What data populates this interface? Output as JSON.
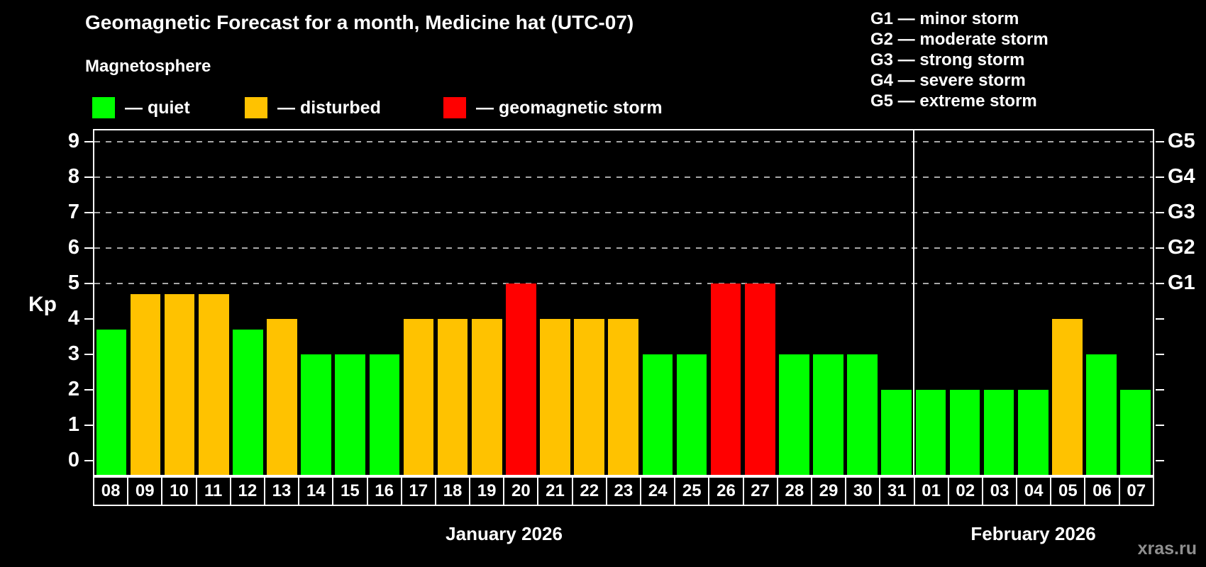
{
  "title": "Geomagnetic Forecast for a month, Medicine hat (UTC-07)",
  "subtitle": "Magnetosphere",
  "legend": {
    "items": [
      {
        "label": "— quiet",
        "status": "quiet",
        "color": "#00FF00"
      },
      {
        "label": "— disturbed",
        "status": "disturbed",
        "color": "#FFC200"
      },
      {
        "label": "— geomagnetic storm",
        "status": "storm",
        "color": "#FF0000"
      }
    ]
  },
  "g_scale_legend": {
    "lines": [
      "G1 — minor storm",
      "G2 — moderate storm",
      "G3 — strong storm",
      "G4 — severe storm",
      "G5 — extreme storm"
    ]
  },
  "watermark": "xras.ru",
  "chart_data": {
    "type": "bar",
    "title": "Geomagnetic Forecast for a month, Medicine hat (UTC-07)",
    "ylabel": "Kp",
    "ylim": [
      0,
      9
    ],
    "yticks": [
      0,
      1,
      2,
      3,
      4,
      5,
      6,
      7,
      8,
      9
    ],
    "grid": "dashed horizontal lines at storm levels only",
    "gridlines": {
      "values": [
        5,
        6,
        7,
        8,
        9
      ],
      "right_labels": [
        "G1",
        "G2",
        "G3",
        "G4",
        "G5"
      ]
    },
    "months": [
      {
        "label": "January 2026",
        "start_index": 0,
        "days": 24
      },
      {
        "label": "February 2026",
        "start_index": 24,
        "days": 7
      }
    ],
    "bars": [
      {
        "day": "08",
        "kp": 3.7,
        "status": "quiet"
      },
      {
        "day": "09",
        "kp": 4.7,
        "status": "disturbed"
      },
      {
        "day": "10",
        "kp": 4.7,
        "status": "disturbed"
      },
      {
        "day": "11",
        "kp": 4.7,
        "status": "disturbed"
      },
      {
        "day": "12",
        "kp": 3.7,
        "status": "quiet"
      },
      {
        "day": "13",
        "kp": 4,
        "status": "disturbed"
      },
      {
        "day": "14",
        "kp": 3,
        "status": "quiet"
      },
      {
        "day": "15",
        "kp": 3,
        "status": "quiet"
      },
      {
        "day": "16",
        "kp": 3,
        "status": "quiet"
      },
      {
        "day": "17",
        "kp": 4,
        "status": "disturbed"
      },
      {
        "day": "18",
        "kp": 4,
        "status": "disturbed"
      },
      {
        "day": "19",
        "kp": 4,
        "status": "disturbed"
      },
      {
        "day": "20",
        "kp": 5,
        "status": "storm"
      },
      {
        "day": "21",
        "kp": 4,
        "status": "disturbed"
      },
      {
        "day": "22",
        "kp": 4,
        "status": "disturbed"
      },
      {
        "day": "23",
        "kp": 4,
        "status": "disturbed"
      },
      {
        "day": "24",
        "kp": 3,
        "status": "quiet"
      },
      {
        "day": "25",
        "kp": 3,
        "status": "quiet"
      },
      {
        "day": "26",
        "kp": 5,
        "status": "storm"
      },
      {
        "day": "27",
        "kp": 5,
        "status": "storm"
      },
      {
        "day": "28",
        "kp": 3,
        "status": "quiet"
      },
      {
        "day": "29",
        "kp": 3,
        "status": "quiet"
      },
      {
        "day": "30",
        "kp": 3,
        "status": "quiet"
      },
      {
        "day": "31",
        "kp": 2,
        "status": "quiet"
      },
      {
        "day": "01",
        "kp": 2,
        "status": "quiet"
      },
      {
        "day": "02",
        "kp": 2,
        "status": "quiet"
      },
      {
        "day": "03",
        "kp": 2,
        "status": "quiet"
      },
      {
        "day": "04",
        "kp": 2,
        "status": "quiet"
      },
      {
        "day": "05",
        "kp": 4,
        "status": "disturbed"
      },
      {
        "day": "06",
        "kp": 3,
        "status": "quiet"
      },
      {
        "day": "07",
        "kp": 2,
        "status": "quiet"
      }
    ]
  },
  "colors": {
    "quiet": "#00FF00",
    "disturbed": "#FFC200",
    "storm": "#FF0000",
    "background": "#000000",
    "axis": "#FFFFFF",
    "gridline": "#A8A8A8",
    "watermark": "#8F8F8F"
  }
}
